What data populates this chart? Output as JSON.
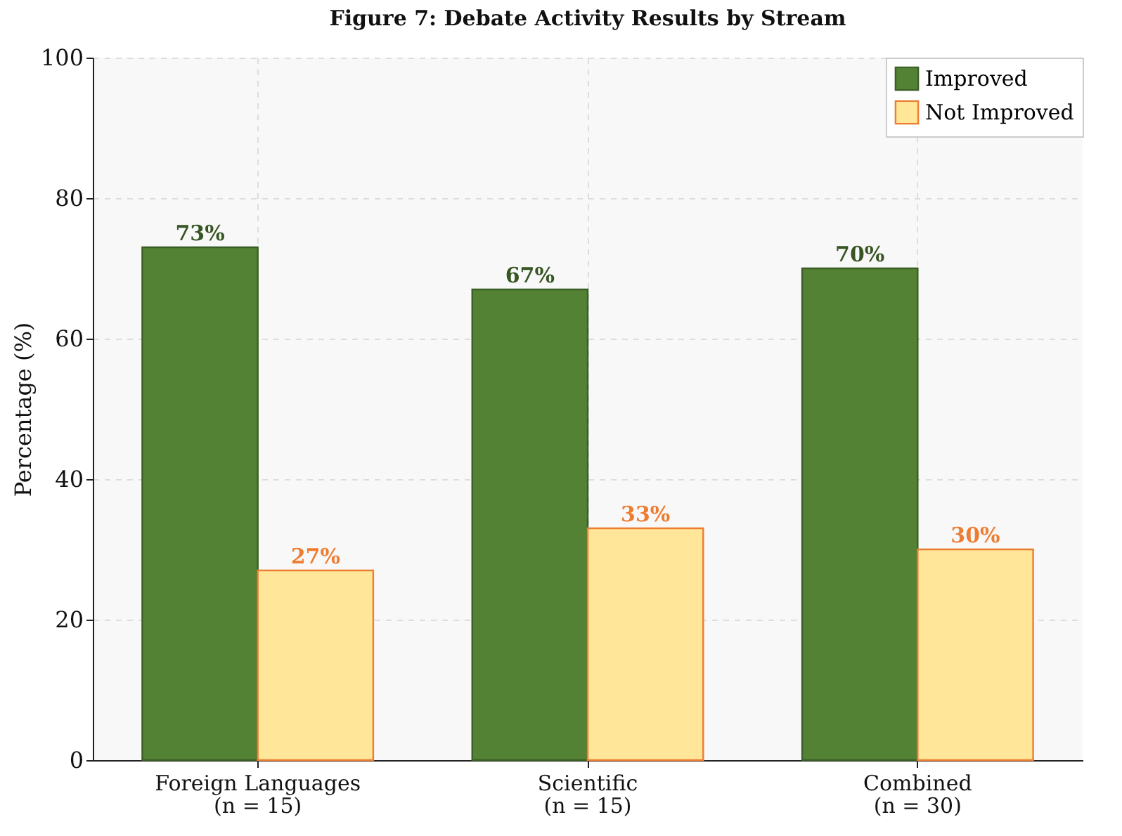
{
  "chart_data": {
    "type": "bar",
    "title": "Figure 7: Debate Activity Results by Stream",
    "ylabel": "Percentage (%)",
    "categories": [
      "Foreign Languages\n(n = 15)",
      "Scientific\n(n = 15)",
      "Combined\n(n = 30)"
    ],
    "series": [
      {
        "name": "Improved",
        "color": "#548235",
        "values": [
          73,
          67,
          70
        ],
        "value_labels": [
          "73%",
          "67%",
          "70%"
        ]
      },
      {
        "name": "Not Improved",
        "color": "#ffe699",
        "values": [
          27,
          33,
          30
        ],
        "value_labels": [
          "27%",
          "33%",
          "30%"
        ]
      }
    ],
    "ylim": [
      0,
      100
    ],
    "yticks": [
      0,
      20,
      40,
      60,
      80,
      100
    ],
    "grid": true,
    "legend": "top right"
  }
}
